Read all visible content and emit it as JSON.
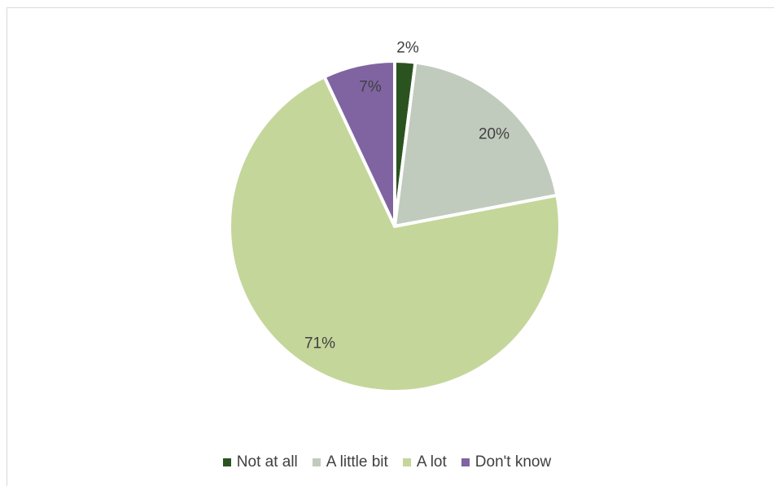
{
  "chart_data": {
    "type": "pie",
    "categories": [
      "Not at all",
      "A little bit",
      "A lot",
      "Don't know"
    ],
    "values": [
      2,
      20,
      71,
      7
    ],
    "labels": [
      "2%",
      "20%",
      "71%",
      "7%"
    ],
    "colors": [
      "#2b5320",
      "#c1cbbd",
      "#c4d69a",
      "#8064a2"
    ],
    "start_angle_deg": 0,
    "direction": "clockwise",
    "legend_position": "bottom",
    "title": ""
  }
}
